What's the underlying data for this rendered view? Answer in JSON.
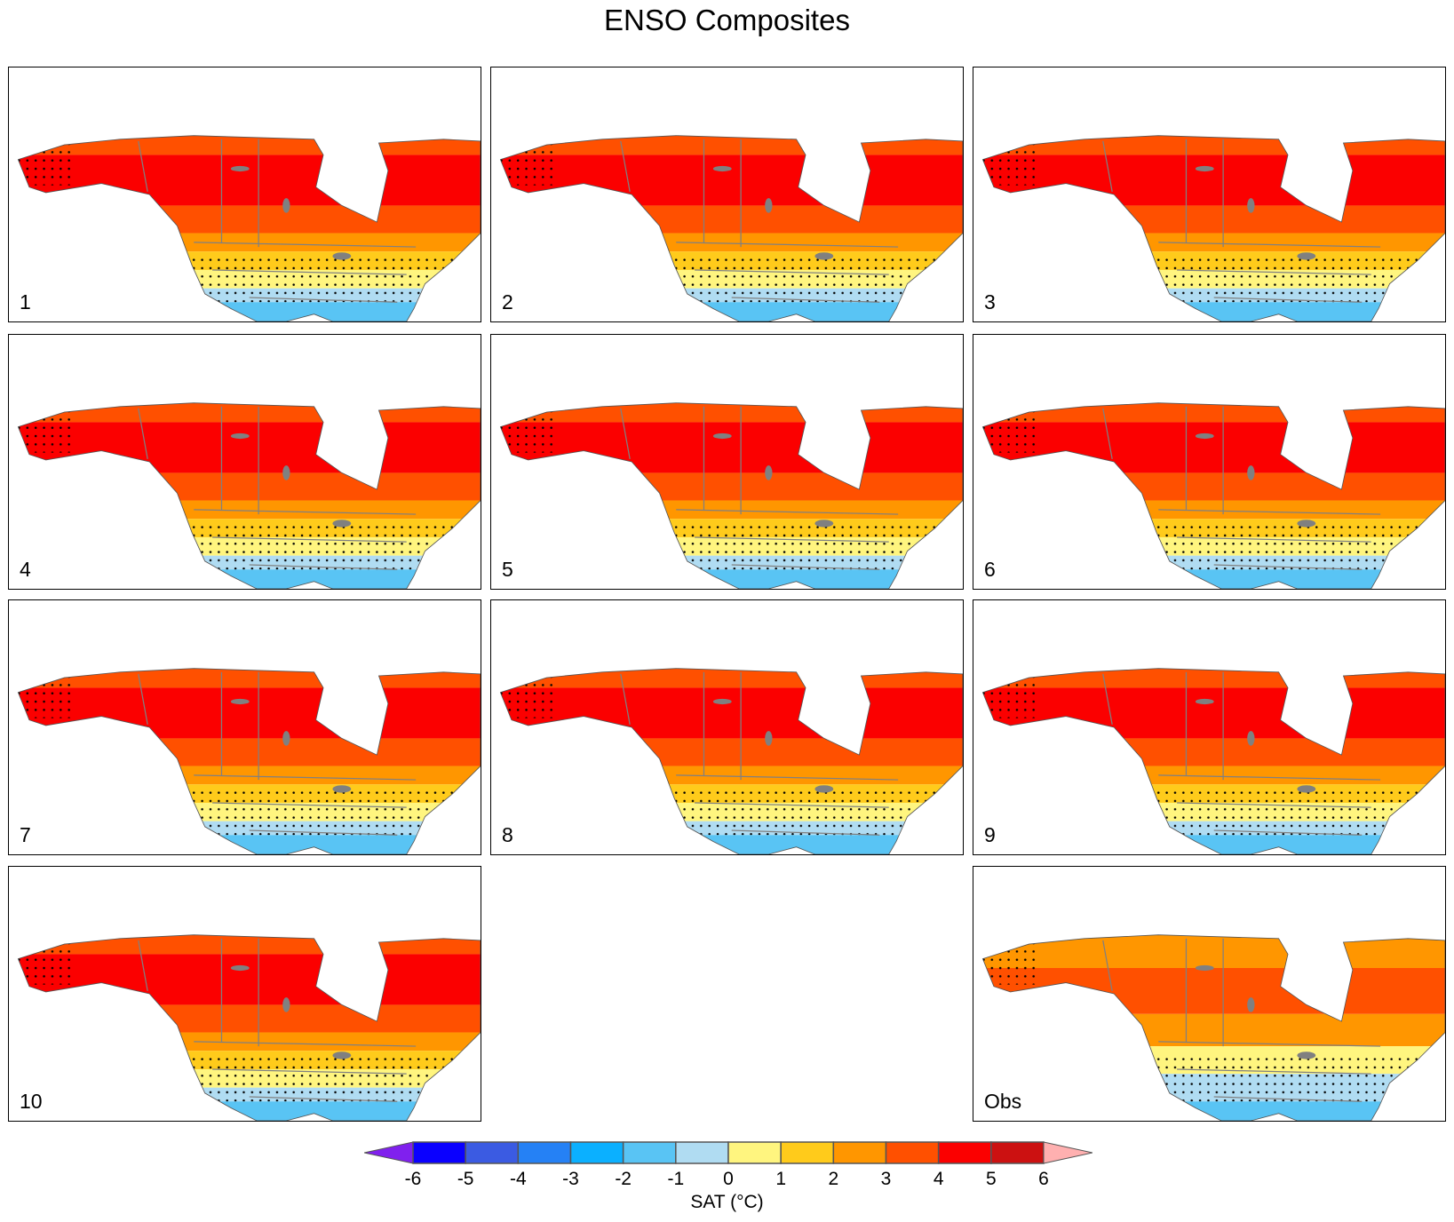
{
  "title": "ENSO Composites",
  "panels": [
    "1",
    "2",
    "3",
    "4",
    "5",
    "6",
    "7",
    "8",
    "9",
    "10",
    "Obs"
  ],
  "colorbar": {
    "label": "SAT (°C)",
    "ticks": [
      "-6",
      "-5",
      "-4",
      "-3",
      "-2",
      "-1",
      "0",
      "1",
      "2",
      "3",
      "4",
      "5",
      "6"
    ],
    "colors": [
      "#0a00ff",
      "#3b5be2",
      "#2581f5",
      "#0bb0ff",
      "#59c4f4",
      "#b0dcf2",
      "#fff57f",
      "#ffcb1b",
      "#ff9600",
      "#ff5000",
      "#fb0000",
      "#cc1111"
    ],
    "under_color": "#8020ee",
    "over_color": "#ffb0b0"
  },
  "colors": {
    "land_outline": "#808080",
    "lakes": "#808080",
    "stipple": "#000000"
  }
}
